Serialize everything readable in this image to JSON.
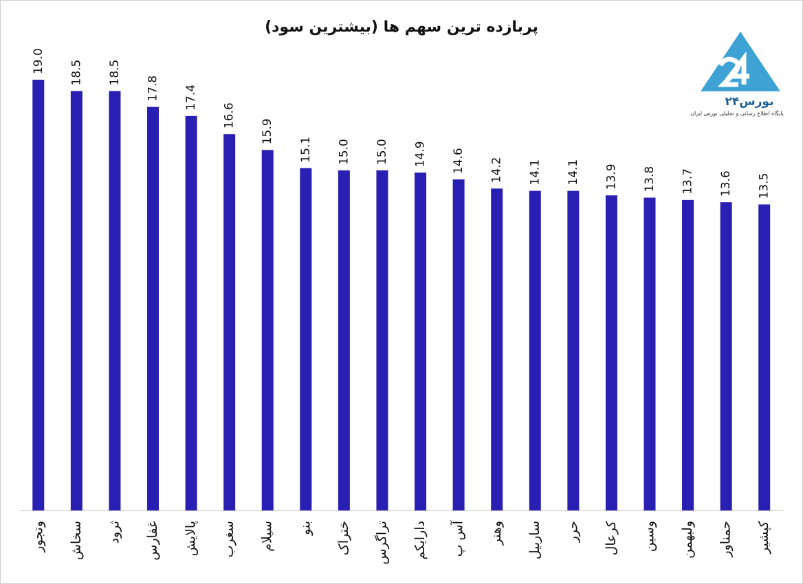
{
  "chart_data": {
    "type": "bar",
    "title": "پربازده ترین سهم ها (بیشترین سود)",
    "categories": [
      "وتجور",
      "سخاش",
      "ثرود",
      "غفارس",
      "پالایش",
      "سغرب",
      "سیلام",
      "بنو",
      "ختراک",
      "تراگرس",
      "دارایکم",
      "آس پ",
      "وهنر",
      "ساربیل",
      "حرر",
      "کرعال",
      "وسین",
      "ولبهمن",
      "حمناور",
      "کپشیر"
    ],
    "values": [
      19.0,
      18.5,
      18.5,
      17.8,
      17.4,
      16.6,
      15.9,
      15.1,
      15.0,
      15.0,
      14.9,
      14.6,
      14.2,
      14.1,
      14.1,
      13.9,
      13.8,
      13.7,
      13.6,
      13.5
    ],
    "value_labels": [
      "19.0",
      "18.5",
      "18.5",
      "17.8",
      "17.4",
      "16.6",
      "15.9",
      "15.1",
      "15.0",
      "15.0",
      "14.9",
      "14.6",
      "14.2",
      "14.1",
      "14.1",
      "13.9",
      "13.8",
      "13.7",
      "13.6",
      "13.5"
    ],
    "color": "#2a1fb3",
    "ylim": [
      0,
      20
    ]
  },
  "logo": {
    "name": "بورس۲۴",
    "tagline": "پایگاه اطلاع رسانی و تحلیلی بورس ایران"
  }
}
